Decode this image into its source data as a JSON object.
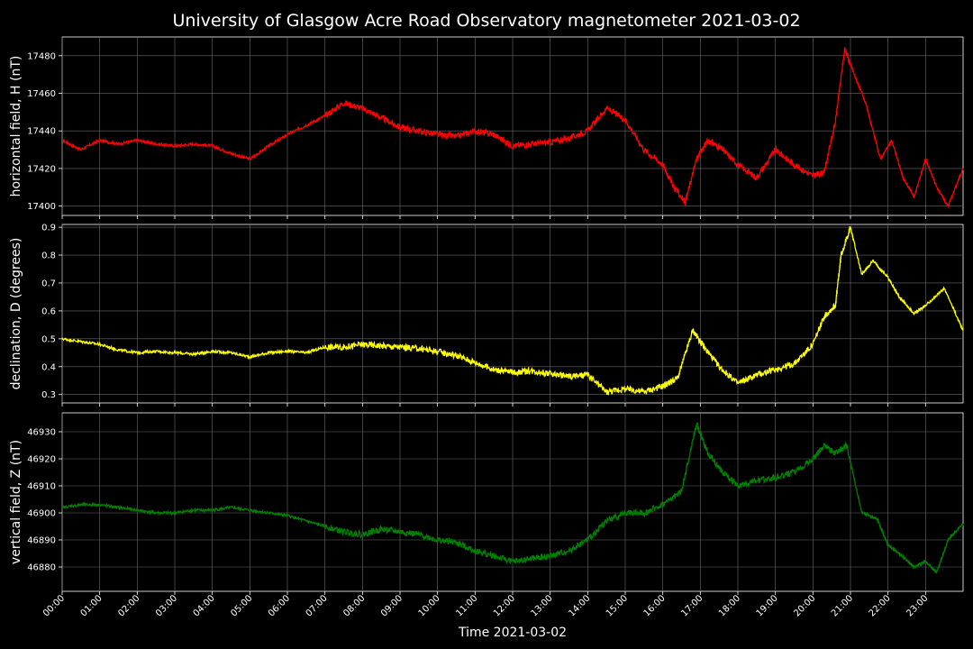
{
  "chart_data": {
    "type": "line",
    "title": "University of Glasgow Acre Road Observatory magnetometer 2021-03-02",
    "xlabel": "Time 2021-03-02",
    "x_tick_labels": [
      "00:00",
      "01:00",
      "02:00",
      "03:00",
      "04:00",
      "05:00",
      "06:00",
      "07:00",
      "08:00",
      "09:00",
      "10:00",
      "11:00",
      "12:00",
      "13:00",
      "14:00",
      "15:00",
      "16:00",
      "17:00",
      "18:00",
      "19:00",
      "20:00",
      "21:00",
      "22:00",
      "23:00"
    ],
    "xlim_hours": [
      0,
      24
    ],
    "grid": true,
    "panels": [
      {
        "ylabel": "horizontal field, H (nT)",
        "color": "#ff0000",
        "ylim": [
          17395,
          17490
        ],
        "yticks": [
          17400,
          17420,
          17440,
          17460,
          17480
        ],
        "x": [
          0,
          0.5,
          1,
          1.5,
          2,
          2.5,
          3,
          3.5,
          4,
          4.5,
          5,
          5.5,
          6,
          6.5,
          7,
          7.5,
          8,
          8.5,
          9,
          9.5,
          10,
          10.5,
          11,
          11.5,
          12,
          12.5,
          13,
          13.5,
          14,
          14.5,
          15,
          15.5,
          16,
          16.3,
          16.6,
          16.9,
          17.2,
          17.6,
          18,
          18.5,
          19,
          19.5,
          20,
          20.3,
          20.6,
          20.85,
          21.1,
          21.4,
          21.8,
          22.1,
          22.4,
          22.7,
          23,
          23.3,
          23.6,
          24
        ],
        "y": [
          17435,
          17430,
          17435,
          17433,
          17435,
          17433,
          17432,
          17433,
          17432,
          17428,
          17425,
          17432,
          17438,
          17443,
          17448,
          17455,
          17452,
          17447,
          17442,
          17440,
          17438,
          17437,
          17440,
          17438,
          17432,
          17433,
          17434,
          17436,
          17440,
          17452,
          17446,
          17430,
          17422,
          17410,
          17402,
          17425,
          17435,
          17430,
          17422,
          17415,
          17430,
          17422,
          17416,
          17418,
          17445,
          17484,
          17470,
          17455,
          17425,
          17435,
          17415,
          17405,
          17425,
          17410,
          17400,
          17420
        ]
      },
      {
        "ylabel": "declination, D (degrees)",
        "color": "#ffff00",
        "ylim": [
          0.27,
          0.91
        ],
        "yticks": [
          0.3,
          0.4,
          0.5,
          0.6,
          0.7,
          0.8,
          0.9
        ],
        "x": [
          0,
          0.5,
          1,
          1.5,
          2,
          2.5,
          3,
          3.5,
          4,
          4.5,
          5,
          5.5,
          6,
          6.5,
          7,
          7.5,
          8,
          8.5,
          9,
          9.5,
          10,
          10.5,
          11,
          11.5,
          12,
          12.5,
          13,
          13.5,
          14,
          14.5,
          15,
          15.5,
          16,
          16.4,
          16.8,
          17.1,
          17.5,
          18,
          18.5,
          19,
          19.5,
          20,
          20.3,
          20.6,
          20.75,
          21,
          21.3,
          21.6,
          22,
          22.3,
          22.7,
          23,
          23.5,
          24
        ],
        "y": [
          0.5,
          0.49,
          0.48,
          0.46,
          0.45,
          0.455,
          0.45,
          0.445,
          0.455,
          0.45,
          0.435,
          0.45,
          0.455,
          0.45,
          0.47,
          0.47,
          0.48,
          0.475,
          0.47,
          0.465,
          0.455,
          0.44,
          0.415,
          0.39,
          0.38,
          0.385,
          0.375,
          0.365,
          0.37,
          0.31,
          0.32,
          0.31,
          0.33,
          0.36,
          0.53,
          0.47,
          0.4,
          0.34,
          0.37,
          0.39,
          0.41,
          0.48,
          0.58,
          0.62,
          0.8,
          0.9,
          0.73,
          0.78,
          0.72,
          0.65,
          0.59,
          0.62,
          0.68,
          0.53
        ]
      },
      {
        "ylabel": "vertical field, Z (nT)",
        "color": "#008000",
        "ylim": [
          46871,
          46937
        ],
        "yticks": [
          46880,
          46890,
          46900,
          46910,
          46920,
          46930
        ],
        "x": [
          0,
          0.5,
          1,
          1.5,
          2,
          2.5,
          3,
          3.5,
          4,
          4.5,
          5,
          5.5,
          6,
          6.5,
          7,
          7.5,
          8,
          8.5,
          9,
          9.5,
          10,
          10.5,
          11,
          11.5,
          12,
          12.5,
          13,
          13.5,
          14,
          14.5,
          15,
          15.5,
          16,
          16.5,
          16.9,
          17.2,
          17.6,
          18,
          18.5,
          19,
          19.5,
          20,
          20.3,
          20.6,
          20.9,
          21.3,
          21.7,
          22,
          22.3,
          22.7,
          23,
          23.3,
          23.6,
          24
        ],
        "y": [
          46902,
          46903,
          46903,
          46902,
          46901,
          46900,
          46900,
          46901,
          46901,
          46902,
          46901,
          46900,
          46899,
          46897,
          46895,
          46893,
          46892,
          46894,
          46893,
          46892,
          46890,
          46889,
          46886,
          46884,
          46882,
          46883,
          46884,
          46886,
          46890,
          46897,
          46900,
          46900,
          46903,
          46908,
          46933,
          46922,
          46915,
          46910,
          46912,
          46913,
          46915,
          46920,
          46925,
          46922,
          46925,
          46900,
          46898,
          46888,
          46885,
          46880,
          46882,
          46878,
          46890,
          46896
        ]
      }
    ]
  }
}
